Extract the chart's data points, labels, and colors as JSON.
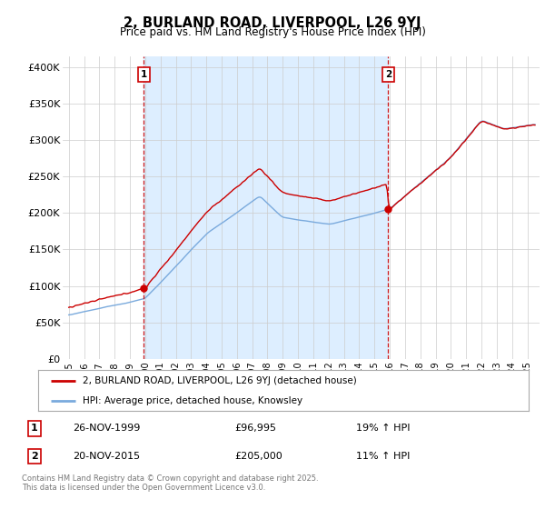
{
  "title": "2, BURLAND ROAD, LIVERPOOL, L26 9YJ",
  "subtitle": "Price paid vs. HM Land Registry's House Price Index (HPI)",
  "ylabel_ticks": [
    "£0",
    "£50K",
    "£100K",
    "£150K",
    "£200K",
    "£250K",
    "£300K",
    "£350K",
    "£400K"
  ],
  "ytick_vals": [
    0,
    50000,
    100000,
    150000,
    200000,
    250000,
    300000,
    350000,
    400000
  ],
  "ylim": [
    0,
    415000
  ],
  "sale1_date": "26-NOV-1999",
  "sale1_price": 96995,
  "sale1_label": "19% ↑ HPI",
  "sale2_date": "20-NOV-2015",
  "sale2_price": 205000,
  "sale2_label": "11% ↑ HPI",
  "legend_line1": "2, BURLAND ROAD, LIVERPOOL, L26 9YJ (detached house)",
  "legend_line2": "HPI: Average price, detached house, Knowsley",
  "footer": "Contains HM Land Registry data © Crown copyright and database right 2025.\nThis data is licensed under the Open Government Licence v3.0.",
  "sale1_x": 1999.9,
  "sale2_x": 2015.9,
  "line_color_property": "#cc0000",
  "line_color_hpi": "#7aaadd",
  "shade_color": "#ddeeff",
  "dashed_color": "#cc0000",
  "background_color": "#ffffff",
  "grid_color": "#cccccc"
}
